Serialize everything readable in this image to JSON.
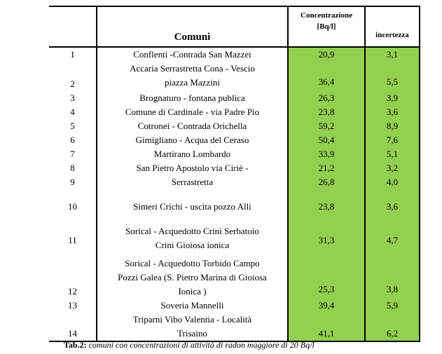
{
  "header": {
    "num": "",
    "comuni": "Comuni",
    "concentrazione": "Concentrazione",
    "unit": "[Bq/l]",
    "incertezza": "incertezza"
  },
  "rows": [
    {
      "num": "1",
      "lines": [
        "Conflenti -Contrada San Mazzei"
      ],
      "conc": "20,9",
      "inc": "3,1"
    },
    {
      "num": "2",
      "lines": [
        "Accaria Serrastretta  Cona - Vescio",
        "piazza Mazzini"
      ],
      "conc": "36,4",
      "inc": "5,5"
    },
    {
      "num": "3",
      "lines": [
        "Brognaturo - fontana publica"
      ],
      "conc": "26,3",
      "inc": "3,9"
    },
    {
      "num": "4",
      "lines": [
        "Comune di Cardinale - via Padre Pio"
      ],
      "conc": "23,8",
      "inc": "3,6"
    },
    {
      "num": "5",
      "lines": [
        "Cotronei - Contrada Orichella"
      ],
      "conc": "59,2",
      "inc": "8,9"
    },
    {
      "num": "6",
      "lines": [
        "Gimigliano - Acqua del Ceraso"
      ],
      "conc": "50,4",
      "inc": "7,6"
    },
    {
      "num": "7",
      "lines": [
        "Martirano Lombardo"
      ],
      "conc": "33,9",
      "inc": "5,1"
    },
    {
      "num": "8",
      "lines": [
        "San Pietro Apostolo via Ciriè -"
      ],
      "conc": "21,2",
      "inc": "3,2"
    },
    {
      "num": "9",
      "lines": [
        "Serrastretta"
      ],
      "conc": "26,8",
      "inc": "4,0"
    },
    {
      "num": "10",
      "lines": [
        "Simeri Crichi - uscita pozzo Alli"
      ],
      "conc": "23,8",
      "inc": "3,6"
    },
    {
      "num": "11",
      "lines": [
        "Sorical - Acquedotto Crini Serbatoio",
        "Crini Gioiosa ionica"
      ],
      "conc": "31,3",
      "inc": "4,7"
    },
    {
      "num": "12",
      "lines": [
        "Sorical - Acquedotto Torbido Campo",
        "Pozzi Galea (S. Pietro Marina di Gioiosa",
        "Ionica )"
      ],
      "conc": "25,3",
      "inc": "3,8"
    },
    {
      "num": "13",
      "lines": [
        "Soveria Mannelli"
      ],
      "conc": "39,4",
      "inc": "5,9"
    },
    {
      "num": "14",
      "lines": [
        "Triparni Vibo Valentia - Località",
        "Trisaino"
      ],
      "conc": "41,1",
      "inc": "6,2"
    }
  ],
  "caption": {
    "label": "Tab.2:",
    "text": "comuni con concentrazioni di attività di radon maggiore di 20 Bq/l"
  }
}
